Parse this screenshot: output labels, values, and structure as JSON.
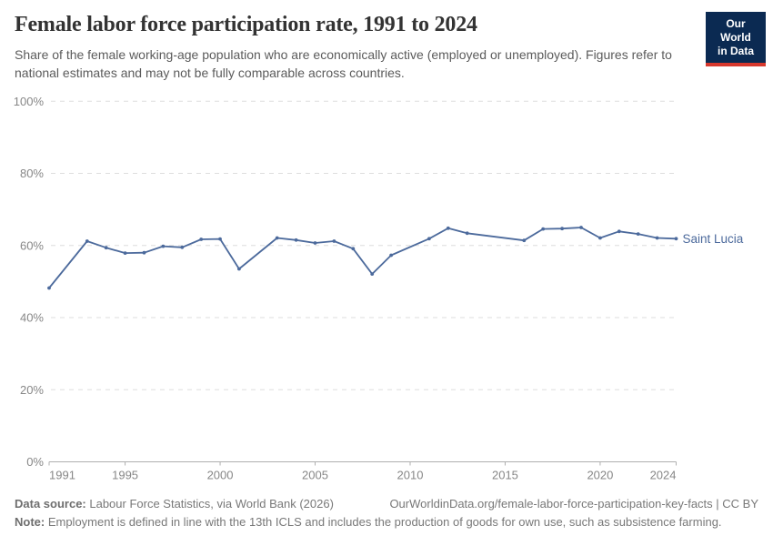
{
  "header": {
    "title": "Female labor force participation rate, 1991 to 2024",
    "subtitle": "Share of the female working-age population who are economically active (employed or unemployed). Figures refer to national estimates and may not be fully comparable across countries."
  },
  "logo": {
    "line1": "Our World",
    "line2": "in Data",
    "bg_color": "#0b2a52",
    "accent_color": "#d7382d"
  },
  "chart_data": {
    "type": "line",
    "title": "Female labor force participation rate, 1991 to 2024",
    "xlabel": "",
    "ylabel": "",
    "xlim": [
      1991,
      2024
    ],
    "ylim": [
      0,
      100
    ],
    "grid": "horizontal-dashed",
    "x_ticks": [
      1991,
      1995,
      2000,
      2005,
      2010,
      2015,
      2020,
      2024
    ],
    "x_tick_labels": [
      "1991",
      "1995",
      "2000",
      "2005",
      "2010",
      "2015",
      "2020",
      "2024"
    ],
    "y_ticks": [
      0,
      20,
      40,
      60,
      80,
      100
    ],
    "y_tick_labels": [
      "0%",
      "20%",
      "40%",
      "60%",
      "80%",
      "100%"
    ],
    "missing_years": [
      1992,
      2002,
      2010,
      2014,
      2015
    ],
    "series": [
      {
        "name": "Saint Lucia",
        "color": "#4c6a9c",
        "points": [
          {
            "year": 1991,
            "value": 48.2
          },
          {
            "year": 1993,
            "value": 61.2
          },
          {
            "year": 1994,
            "value": 59.4
          },
          {
            "year": 1995,
            "value": 57.9
          },
          {
            "year": 1996,
            "value": 58.0
          },
          {
            "year": 1997,
            "value": 59.8
          },
          {
            "year": 1998,
            "value": 59.5
          },
          {
            "year": 1999,
            "value": 61.7
          },
          {
            "year": 2000,
            "value": 61.8
          },
          {
            "year": 2001,
            "value": 53.5
          },
          {
            "year": 2003,
            "value": 62.1
          },
          {
            "year": 2004,
            "value": 61.5
          },
          {
            "year": 2005,
            "value": 60.7
          },
          {
            "year": 2006,
            "value": 61.2
          },
          {
            "year": 2007,
            "value": 59.1
          },
          {
            "year": 2008,
            "value": 52.1
          },
          {
            "year": 2009,
            "value": 57.3
          },
          {
            "year": 2011,
            "value": 61.9
          },
          {
            "year": 2012,
            "value": 64.8
          },
          {
            "year": 2013,
            "value": 63.4
          },
          {
            "year": 2016,
            "value": 61.4
          },
          {
            "year": 2017,
            "value": 64.6
          },
          {
            "year": 2018,
            "value": 64.7
          },
          {
            "year": 2019,
            "value": 65.0
          },
          {
            "year": 2020,
            "value": 62.1
          },
          {
            "year": 2021,
            "value": 63.9
          },
          {
            "year": 2022,
            "value": 63.2
          },
          {
            "year": 2023,
            "value": 62.1
          },
          {
            "year": 2024,
            "value": 61.9
          }
        ]
      }
    ]
  },
  "footer": {
    "datasource_label": "Data source:",
    "datasource_text": " Labour Force Statistics, via World Bank (2026)",
    "url_text": "OurWorldinData.org/female-labor-force-participation-key-facts | CC BY",
    "note_label": "Note:",
    "note_text": " Employment is defined in line with the 13th ICLS and includes the production of goods for own use, such as subsistence farming."
  }
}
